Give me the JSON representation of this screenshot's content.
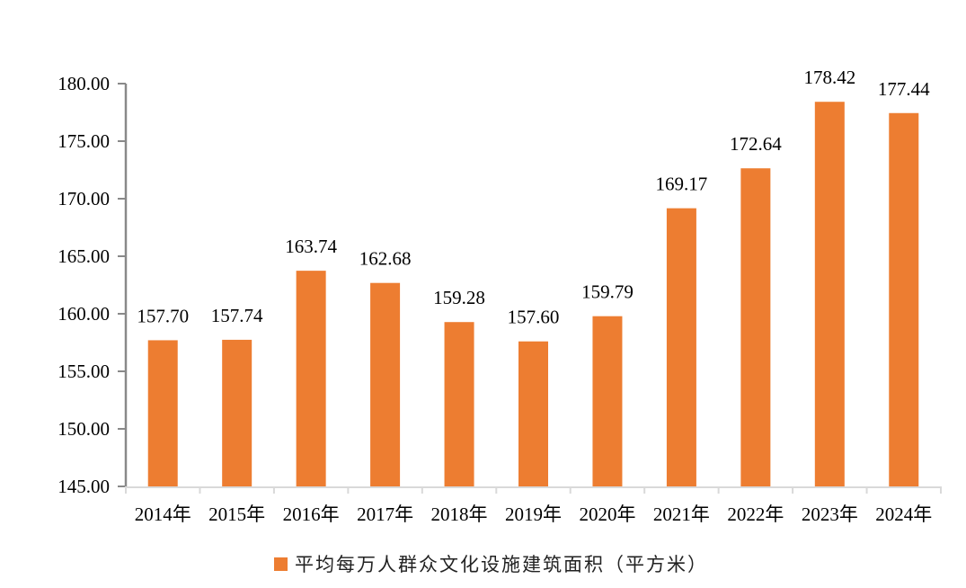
{
  "chart_data": {
    "type": "bar",
    "title": "",
    "xlabel": "",
    "ylabel": "",
    "categories": [
      "2014年",
      "2015年",
      "2016年",
      "2017年",
      "2018年",
      "2019年",
      "2020年",
      "2021年",
      "2022年",
      "2023年",
      "2024年"
    ],
    "series": [
      {
        "name": "平均每万人群众文化设施建筑面积（平方米）",
        "color": "#ED7D31",
        "values": [
          157.7,
          157.74,
          163.74,
          162.68,
          159.28,
          157.6,
          159.79,
          169.17,
          172.64,
          178.42,
          177.44
        ],
        "labels": [
          "157.70",
          "157.74",
          "163.74",
          "162.68",
          "159.28",
          "157.60",
          "159.79",
          "169.17",
          "172.64",
          "178.42",
          "177.44"
        ]
      }
    ],
    "ylim": [
      145,
      180
    ],
    "yticks": [
      "145.00",
      "150.00",
      "155.00",
      "160.00",
      "165.00",
      "170.00",
      "175.00",
      "180.00"
    ],
    "grid": false,
    "legend_position": "bottom"
  },
  "legend": {
    "label": "平均每万人群众文化设施建筑面积（平方米）"
  }
}
